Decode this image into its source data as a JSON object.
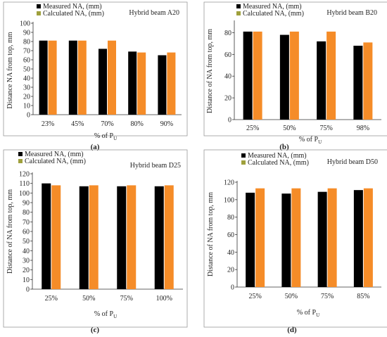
{
  "colors": {
    "measured": "#000000",
    "calculated": "#f58c28",
    "legend_calculated": "#9fa03c",
    "axis": "#333333",
    "background": "#ffffff"
  },
  "chart_data": [
    {
      "type": "bar",
      "panel_label": "(a)",
      "title": "Hybrid beam A20",
      "xlabel": "% of P",
      "xlabel_sub": "U",
      "ylabel": "Distance NA from top, mm",
      "ylim": [
        0,
        100
      ],
      "yticks": [
        0,
        10,
        20,
        30,
        40,
        50,
        60,
        70,
        80,
        90,
        100
      ],
      "categories": [
        "23%",
        "45%",
        "70%",
        "80%",
        "90%"
      ],
      "series": [
        {
          "name": "Measured NA, (mm)",
          "values": [
            81,
            81,
            72,
            69,
            65
          ]
        },
        {
          "name": "Calculated NA, (mm)",
          "values": [
            81,
            81,
            81,
            68,
            68
          ]
        }
      ],
      "grid": false,
      "legend": "top-left"
    },
    {
      "type": "bar",
      "panel_label": "(b)",
      "title": "Hybrid beam B20",
      "xlabel": "% of P",
      "xlabel_sub": "U",
      "ylabel": "Distance of NA from top, mm",
      "ylim": [
        0,
        90
      ],
      "yticks": [
        0,
        20,
        40,
        60,
        80
      ],
      "categories": [
        "25%",
        "50%",
        "75%",
        "98%"
      ],
      "series": [
        {
          "name": "Measured NA, (mm)",
          "values": [
            81,
            78,
            72,
            68
          ]
        },
        {
          "name": "Calculated NA, (mm)",
          "values": [
            81,
            81,
            81,
            71
          ]
        }
      ],
      "grid": false,
      "legend": "top-left"
    },
    {
      "type": "bar",
      "panel_label": "(c)",
      "title": "Hybrid beam D25",
      "xlabel": "% of P",
      "xlabel_sub": "U",
      "ylabel": "Distance of NA from top, mm",
      "ylim": [
        0,
        120
      ],
      "yticks": [
        0,
        10,
        20,
        30,
        40,
        50,
        60,
        70,
        80,
        90,
        100,
        110,
        120
      ],
      "categories": [
        "25%",
        "50%",
        "75%",
        "100%"
      ],
      "series": [
        {
          "name": "Measured NA, (mm)",
          "values": [
            110,
            107,
            107,
            107
          ]
        },
        {
          "name": "Calculated NA, (mm)",
          "values": [
            108,
            108,
            108,
            108
          ]
        }
      ],
      "grid": false,
      "legend": "top-left"
    },
    {
      "type": "bar",
      "panel_label": "(d)",
      "title": "Hybrid beam D50",
      "xlabel": "% of P",
      "xlabel_sub": "U",
      "ylabel": "Distance of NA from top, mm",
      "ylim": [
        0,
        120
      ],
      "yticks": [
        0,
        20,
        40,
        60,
        80,
        100,
        120
      ],
      "categories": [
        "25%",
        "50%",
        "75%",
        "85%"
      ],
      "series": [
        {
          "name": "Measured NA, (mm)",
          "values": [
            108,
            107,
            109,
            111
          ]
        },
        {
          "name": "Calculated NA, (mm)",
          "values": [
            113,
            113,
            113,
            113
          ]
        }
      ],
      "grid": false,
      "legend": "top-left"
    }
  ]
}
